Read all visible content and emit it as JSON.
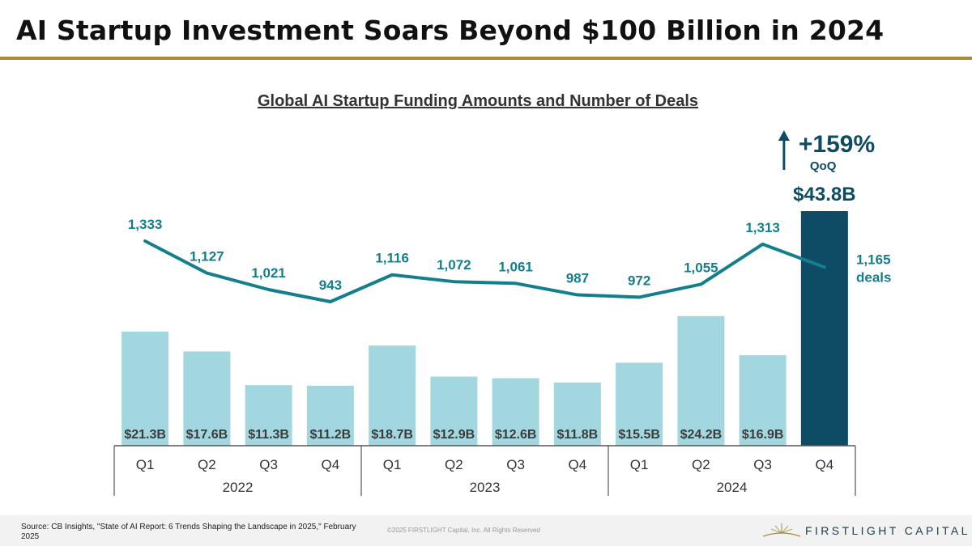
{
  "page": {
    "title": "AI Startup Investment Soars Beyond $100 Billion in 2024"
  },
  "chart_data": {
    "type": "bar",
    "title": "Global AI Startup Funding Amounts and Number of Deals",
    "categories": [
      "Q1",
      "Q2",
      "Q3",
      "Q4",
      "Q1",
      "Q2",
      "Q3",
      "Q4",
      "Q1",
      "Q2",
      "Q3",
      "Q4"
    ],
    "groups": [
      {
        "label": "2022",
        "count": 4
      },
      {
        "label": "2023",
        "count": 4
      },
      {
        "label": "2024",
        "count": 4
      }
    ],
    "series": [
      {
        "type": "bar",
        "values": [
          21.3,
          17.6,
          11.3,
          11.2,
          18.7,
          12.9,
          12.6,
          11.8,
          15.5,
          24.2,
          16.9,
          43.8
        ],
        "labels": [
          "$21.3B",
          "$17.6B",
          "$11.3B",
          "$11.2B",
          "$18.7B",
          "$12.9B",
          "$12.6B",
          "$11.8B",
          "$15.5B",
          "$24.2B",
          "$16.9B",
          "$43.8B"
        ],
        "color": "#a3d7df",
        "highlight_color": "#0d4c64"
      },
      {
        "type": "line",
        "values": [
          1333,
          1127,
          1021,
          943,
          1116,
          1072,
          1061,
          987,
          972,
          1055,
          1313,
          1165
        ],
        "labels": [
          "1,333",
          "1,127",
          "1,021",
          "943",
          "1,116",
          "1,072",
          "1,061",
          "987",
          "972",
          "1,055",
          "1,313",
          "1,165"
        ],
        "last_label_suffix": "deals",
        "color": "#147f8c"
      }
    ],
    "annotation": {
      "change": "+159%",
      "basis": "QoQ"
    },
    "grid": false,
    "legend": "none"
  },
  "footer": {
    "source": "Source: CB Insights, \"State of AI Report: 6 Trends Shaping the Landscape in 2025,\" February 2025",
    "copyright": "©2025 FIRSTLIGHT Capital, Inc. All Rights Reserved",
    "logo_text": "FIRSTLIGHT CAPITAL"
  },
  "colors": {
    "title_rule": "#a48a3e",
    "bar_label": "#3b3b3b",
    "highlight_label": "#0d4c64"
  }
}
